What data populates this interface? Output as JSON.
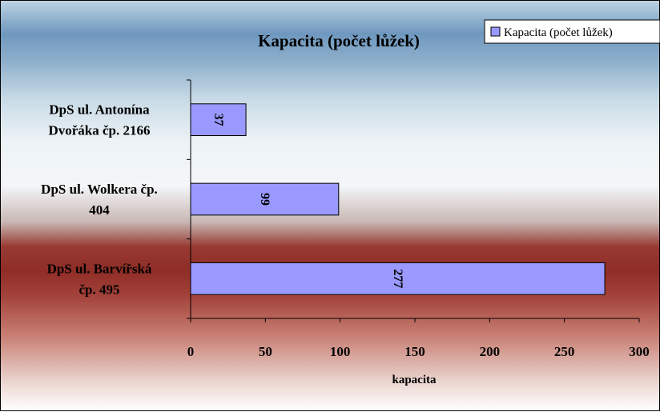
{
  "chart_data": {
    "type": "bar",
    "orientation": "horizontal",
    "title": "Kapacita (počet lůžek)",
    "xlabel": "kapacita",
    "ylabel": "",
    "xlim": [
      0,
      300
    ],
    "x_ticks": [
      0,
      50,
      100,
      150,
      200,
      250,
      300
    ],
    "categories": [
      [
        "DpS ul. Antonína",
        "Dvořáka čp. 2166"
      ],
      [
        "DpS ul. Wolkera čp.",
        "404"
      ],
      [
        "DpS ul. Barvířská",
        "čp. 495"
      ]
    ],
    "series": [
      {
        "name": "Kapacita (počet lůžek)",
        "values": [
          37,
          99,
          277
        ],
        "color": "#9999ff"
      }
    ],
    "data_labels": [
      "37",
      "99",
      "277"
    ],
    "grid": false,
    "legend": {
      "position": "top-right",
      "entries": [
        "Kapacita (počet lůžek)"
      ]
    }
  }
}
